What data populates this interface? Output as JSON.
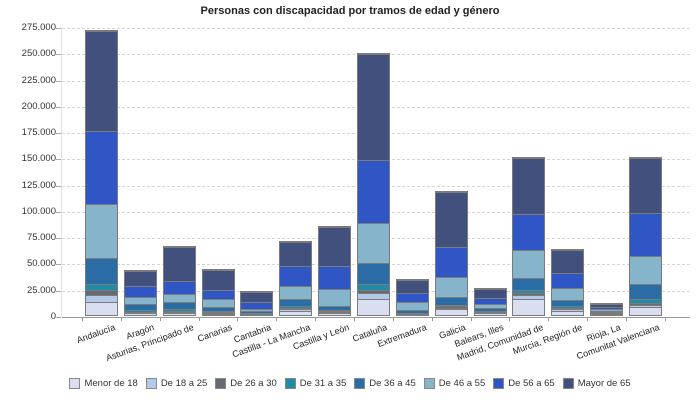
{
  "chart_data": {
    "type": "bar",
    "stacked": true,
    "title": "Personas con discapacidad por tramos de edad y género",
    "xlabel": "",
    "ylabel": "",
    "ylim": [
      0,
      275000
    ],
    "y_tick_step": 25000,
    "y_tick_labels": [
      "0",
      "25.000",
      "50.000",
      "75.000",
      "100.000",
      "125.000",
      "150.000",
      "175.000",
      "200.000",
      "225.000",
      "250.000",
      "275.000"
    ],
    "grid": "horizontal-dashed",
    "legend_position": "bottom",
    "axis_color": "#999999",
    "gridline_color": "#d6d6d6",
    "bar_border_color": "#7b7b7b",
    "categories": [
      "Andalucía",
      "Aragón",
      "Asturias, Principado de",
      "Canarias",
      "Cantabria",
      "Castilla - La Mancha",
      "Castilla y León",
      "Cataluña",
      "Extremadura",
      "Galicia",
      "Balears, Illes",
      "Madrid, Comunidad de",
      "Murcia, Región de",
      "Rioja, La",
      "Comunitat Valenciana"
    ],
    "series": [
      {
        "name": "Menor de 18",
        "color": "#d9def1",
        "values": [
          12500,
          1500,
          2000,
          1300,
          700,
          4100,
          2000,
          14800,
          1000,
          5400,
          2000,
          14800,
          3800,
          1200,
          8000
        ]
      },
      {
        "name": "De 18 a 25",
        "color": "#b4c8e8",
        "values": [
          6500,
          1000,
          1200,
          700,
          400,
          1200,
          1000,
          6300,
          500,
          1600,
          700,
          3800,
          1500,
          500,
          1700
        ]
      },
      {
        "name": "De 26 a 30",
        "color": "#666b72",
        "values": [
          4500,
          800,
          1000,
          600,
          300,
          1200,
          900,
          2500,
          400,
          1500,
          500,
          1900,
          1000,
          400,
          1900
        ]
      },
      {
        "name": "De 31 a 35",
        "color": "#1f8ba6",
        "values": [
          6500,
          1200,
          1500,
          900,
          500,
          2200,
          1000,
          6300,
          500,
          1500,
          700,
          3800,
          2500,
          500,
          3800
        ]
      },
      {
        "name": "De 36 a 45",
        "color": "#2a6ca6",
        "values": [
          24500,
          6000,
          6700,
          3800,
          1500,
          6300,
          4100,
          19700,
          2500,
          7000,
          3200,
          11100,
          5400,
          1300,
          14300
        ]
      },
      {
        "name": "De 46 a 55",
        "color": "#85b4cb",
        "values": [
          51000,
          6500,
          8000,
          8000,
          2800,
          12700,
          16200,
          38000,
          7600,
          19500,
          3800,
          26300,
          11100,
          1500,
          26900
        ]
      },
      {
        "name": "De 56 a 65",
        "color": "#3055c4",
        "values": [
          70000,
          10500,
          12000,
          8600,
          5800,
          19000,
          21900,
          59600,
          8200,
          28500,
          5600,
          34900,
          14300,
          2300,
          40200
        ]
      },
      {
        "name": "Mayor de 65",
        "color": "#42507e",
        "values": [
          94500,
          14500,
          32200,
          18600,
          9500,
          22800,
          36600,
          100800,
          12800,
          52000,
          8500,
          52400,
          22400,
          2800,
          52700
        ]
      }
    ]
  }
}
